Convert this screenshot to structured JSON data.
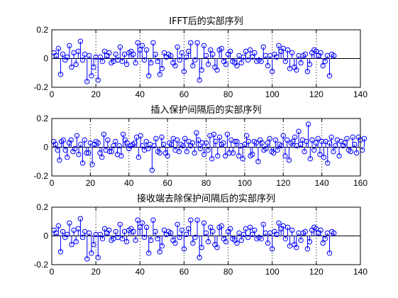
{
  "chart_data": [
    {
      "type": "stem",
      "title": "IFFT后的实部序列",
      "xlim": [
        0,
        140
      ],
      "ylim": [
        -0.2,
        0.2
      ],
      "xticks": [
        0,
        20,
        40,
        60,
        80,
        100,
        120,
        140
      ],
      "yticks": [
        -0.2,
        0,
        0.2
      ],
      "ytick_labels": [
        "-0.2",
        "0",
        "0.2"
      ],
      "grid": "vertical-dotted",
      "marker": "circle",
      "color": "#0000ff",
      "x_start": 1,
      "values": [
        0.04,
        0.02,
        0.07,
        -0.11,
        0.03,
        -0.01,
        0.01,
        0.09,
        -0.06,
        0.04,
        -0.04,
        0.05,
        0.12,
        -0.01,
        0.03,
        -0.16,
        0.02,
        -0.12,
        -0.06,
        0.01,
        -0.15,
        0.01,
        -0.02,
        0.05,
        0.02,
        0.04,
        -0.03,
        -0.02,
        0.03,
        -0.01,
        0.08,
        -0.02,
        0.03,
        -0.04,
        0.04,
        0.05,
        0.03,
        -0.03,
        0.11,
        0.06,
        0.09,
        -0.01,
        0.06,
        -0.12,
        -0.03,
        0.11,
        0.03,
        -0.02,
        -0.11,
        -0.07,
        0.04,
        0.01,
        0.03,
        0.02,
        -0.03,
        -0.05,
        0.08,
        -0.01,
        0.04,
        -0.09,
        0.01,
        0.05,
        0.11,
        -0.05,
        -0.01,
        0.11,
        -0.15,
        -0.08,
        0.09,
        0.02,
        -0.04,
        0.06,
        0.03,
        -0.06,
        -0.08,
        0.06,
        0.07,
        -0.02,
        -0.04,
        0.03,
        0.05,
        -0.02,
        -0.03,
        -0.05,
        0.02,
        -0.03,
        0.01,
        0.05,
        -0.01,
        0.06,
        0.01,
        0.04,
        -0.02,
        -0.01,
        -0.02,
        0.08,
        0.02,
        -0.05,
        0.02,
        -0.09,
        0.03,
        0.01,
        0.09,
        0.05,
        0.07,
        -0.02,
        0.06,
        -0.07,
        0.04,
        -0.06,
        -0.08,
        0.02,
        -0.03,
        0.02,
        0.03,
        -0.09,
        -0.04,
        0.04,
        0.06,
        0.05,
        0.02,
        0.04,
        -0.05,
        -0.02,
        0.02,
        -0.12,
        0.03,
        0.02
      ]
    },
    {
      "type": "stem",
      "title": "插入保护间隔后的实部序列",
      "xlim": [
        0,
        160
      ],
      "ylim": [
        -0.2,
        0.2
      ],
      "xticks": [
        0,
        20,
        40,
        60,
        80,
        100,
        120,
        140,
        160
      ],
      "yticks": [
        -0.2,
        0,
        0.2
      ],
      "ytick_labels": [
        "-0.2",
        "0",
        "0.2"
      ],
      "grid": "vertical-dotted",
      "marker": "circle",
      "color": "#0000ff",
      "x_start": 1,
      "values": [
        0.04,
        0.02,
        -0.02,
        -0.09,
        0.04,
        0.05,
        -0.02,
        -0.07,
        0.03,
        0.05,
        -0.03,
        -0.01,
        0.08,
        -0.05,
        0.02,
        -0.11,
        0.05,
        -0.04,
        -0.04,
        0.03,
        -0.12,
        0.02,
        0.04,
        0.03,
        -0.04,
        -0.07,
        0.09,
        -0.02,
        0.05,
        -0.03,
        -0.03,
        0.01,
        0.04,
        -0.05,
        0.01,
        -0.06,
        0.09,
        0.05,
        0.03,
        -0.01,
        0.01,
        0.02,
        0.03,
        0.07,
        -0.07,
        0.08,
        0.01,
        -0.02,
        0.04,
        -0.01,
        0.02,
        -0.16,
        0.01,
        0.06,
        -0.03,
        -0.04,
        0.07,
        0.02,
        -0.04,
        -0.06,
        0.03,
        0.02,
        0.06,
        -0.02,
        0.05,
        -0.03,
        0.02,
        0.01,
        0.06,
        -0.03,
        0.04,
        0.01,
        0.03,
        -0.04,
        0.1,
        0.05,
        -0.01,
        0.03,
        -0.05,
        0.03,
        -0.02,
        0.08,
        -0.08,
        0.09,
        0.04,
        -0.06,
        0.07,
        0.02,
        0.03,
        -0.06,
        0.09,
        -0.04,
        0.05,
        -0.04,
        0.04,
        0.04,
        -0.06,
        0.01,
        -0.08,
        0.02,
        0.08,
        0.04,
        -0.06,
        -0.05,
        0.04,
        0.03,
        -0.1,
        0.05,
        0.03,
        -0.02,
        -0.01,
        0.03,
        0.06,
        -0.03,
        -0.04,
        0.05,
        -0.02,
        0.02,
        0.01,
        0.08,
        -0.06,
        0.05,
        -0.09,
        0.03,
        0.04,
        0.07,
        0.01,
        0.11,
        0.02,
        0.05,
        -0.03,
        0.04,
        0.16,
        -0.08,
        0.05,
        -0.02,
        0.03,
        0.06,
        -0.05,
        0.04,
        -0.07,
        0.04,
        -0.11,
        0.03,
        0.07,
        -0.03,
        0.01,
        0.05,
        -0.06,
        0.04,
        0.01,
        0.03,
        0.06,
        -0.02,
        -0.03,
        0.07,
        0.02,
        -0.04,
        0.07,
        0.05,
        -0.02,
        0.06
      ]
    },
    {
      "type": "stem",
      "title": "接收端去除保护间隔后的实部序列",
      "xlim": [
        0,
        140
      ],
      "ylim": [
        -0.2,
        0.2
      ],
      "xticks": [
        0,
        20,
        40,
        60,
        80,
        100,
        120,
        140
      ],
      "yticks": [
        -0.2,
        0,
        0.2
      ],
      "ytick_labels": [
        "-0.2",
        "0",
        "0.2"
      ],
      "grid": "vertical-dotted",
      "marker": "circle",
      "color": "#0000ff",
      "x_start": 1,
      "values": [
        0.04,
        0.02,
        0.07,
        -0.11,
        0.03,
        -0.01,
        0.01,
        0.09,
        -0.06,
        0.04,
        -0.04,
        0.05,
        0.12,
        -0.01,
        0.03,
        -0.16,
        0.02,
        -0.12,
        -0.06,
        0.01,
        -0.15,
        0.01,
        -0.02,
        0.05,
        0.02,
        0.04,
        -0.03,
        -0.02,
        0.03,
        -0.01,
        0.08,
        -0.02,
        0.03,
        -0.04,
        0.04,
        0.05,
        0.03,
        -0.03,
        0.11,
        0.06,
        0.09,
        -0.01,
        0.06,
        -0.12,
        -0.03,
        0.11,
        0.03,
        -0.02,
        -0.11,
        -0.07,
        0.04,
        0.01,
        0.03,
        0.02,
        -0.03,
        -0.05,
        0.08,
        -0.01,
        0.04,
        -0.09,
        0.01,
        0.05,
        0.11,
        -0.05,
        -0.01,
        0.11,
        -0.15,
        -0.08,
        0.09,
        0.02,
        -0.04,
        0.06,
        0.03,
        -0.06,
        -0.08,
        0.06,
        0.07,
        -0.02,
        -0.04,
        0.03,
        0.05,
        -0.02,
        -0.03,
        -0.05,
        0.02,
        -0.03,
        0.01,
        0.05,
        -0.01,
        0.06,
        0.01,
        0.04,
        -0.02,
        -0.01,
        -0.02,
        0.08,
        0.02,
        -0.05,
        0.02,
        -0.09,
        0.03,
        0.01,
        0.09,
        0.05,
        0.07,
        -0.02,
        0.06,
        -0.07,
        0.04,
        -0.06,
        -0.08,
        0.02,
        -0.03,
        0.02,
        0.03,
        -0.09,
        -0.04,
        0.04,
        0.06,
        0.05,
        0.02,
        0.04,
        -0.05,
        -0.02,
        0.02,
        -0.12,
        0.03,
        0.02
      ]
    }
  ]
}
